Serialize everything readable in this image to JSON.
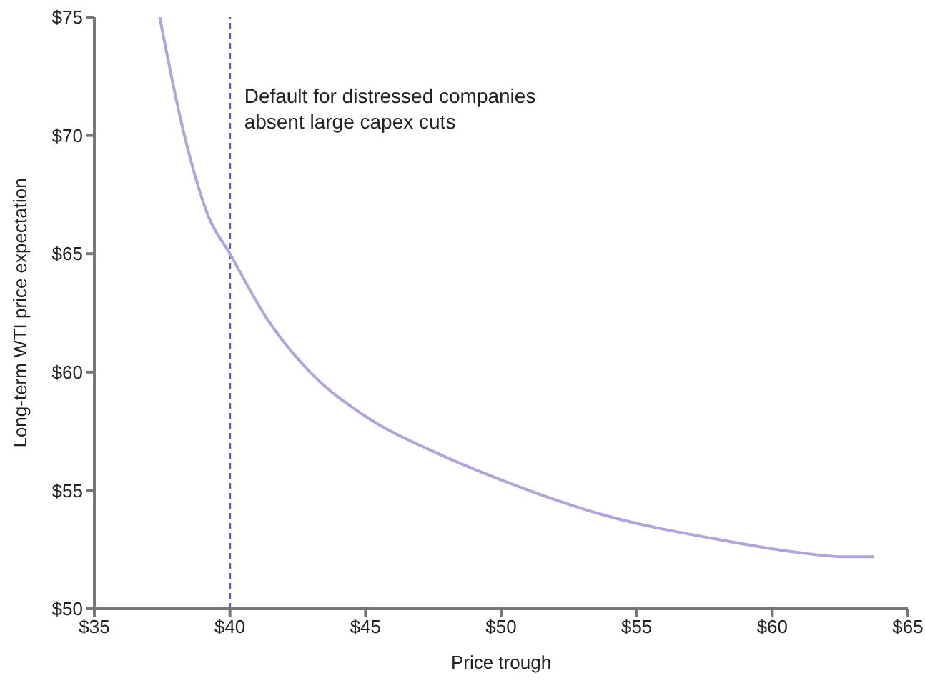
{
  "chart_data": {
    "type": "line",
    "xlabel": "Price trough",
    "ylabel": "Long-term WTI price expectation",
    "x": [
      37.41,
      38.3,
      39.2,
      40,
      41.34,
      43.13,
      44.91,
      47.59,
      50.1,
      53.66,
      58.13,
      60.8,
      62.59,
      63.75
    ],
    "series": [
      {
        "color": "#b4a2dc",
        "values": [
          75,
          70.1,
          66.6,
          65,
          62.3,
          59.8,
          58.2,
          56.6,
          55.4,
          54,
          52.9,
          52.4,
          52.2,
          52.2
        ]
      }
    ],
    "xlim": [
      35,
      65
    ],
    "xticks": [
      {
        "value": 35,
        "label": "$35"
      },
      {
        "value": 40,
        "label": "$40"
      },
      {
        "value": 45,
        "label": "$45"
      },
      {
        "value": 50,
        "label": "$50"
      },
      {
        "value": 55,
        "label": "$55"
      },
      {
        "value": 60,
        "label": "$60"
      },
      {
        "value": 65,
        "label": "$65"
      }
    ],
    "ylim": [
      50,
      75
    ],
    "yticks": [
      {
        "value": 50,
        "label": "$50"
      },
      {
        "value": 55,
        "label": "$55"
      },
      {
        "value": 60,
        "label": "$60"
      },
      {
        "value": 65,
        "label": "$65"
      },
      {
        "value": 70,
        "label": "$70"
      },
      {
        "value": 75,
        "label": "$75"
      }
    ],
    "ref_lines": [
      {
        "axis": "x",
        "value": 40,
        "label": "Default for distressed companies\nabsent large capex cuts",
        "color": "#6a52c4",
        "line_style": "dashed"
      }
    ],
    "grid": false,
    "marker": "none",
    "line_style": "solid"
  }
}
